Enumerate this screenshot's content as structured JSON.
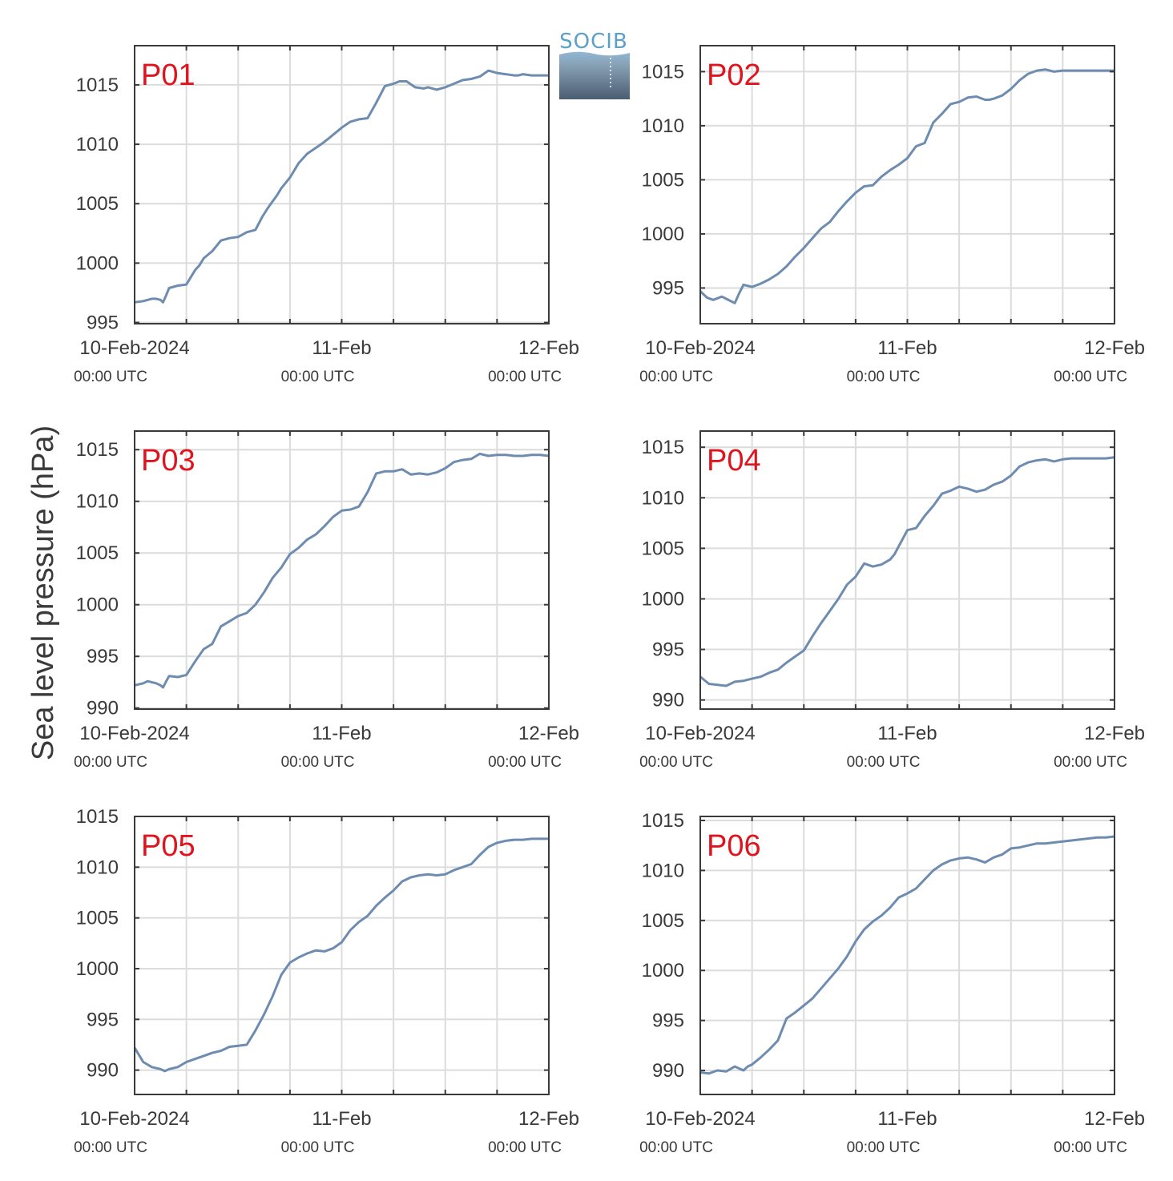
{
  "figure": {
    "ylabel": "Sea level pressure (hPa)",
    "logo_text": "SOCIB",
    "line_color": "#6e8caf",
    "label_color": "#e0141e",
    "grid_color": "#dcdcdc",
    "axis_color": "#3a3a3a",
    "logo_top_color": "#5aa0c8",
    "logo_bottom_color": "#4a5d72"
  },
  "chart_data": [
    {
      "type": "line",
      "label": "P01",
      "xlim": [
        0,
        48
      ],
      "ylim": [
        994.9,
        1018.3
      ],
      "yticks": [
        995,
        1000,
        1005,
        1010,
        1015
      ],
      "xtick_labels": [
        {
          "x": 0,
          "date": "10-Feb-2024",
          "time": "00:00 UTC"
        },
        {
          "x": 24,
          "date": "11-Feb",
          "time": "00:00 UTC"
        },
        {
          "x": 48,
          "date": "12-Feb",
          "time": "00:00 UTC"
        }
      ],
      "series": [
        {
          "x": [
            0,
            1,
            2,
            2.5,
            3,
            3.3,
            3.6,
            4,
            5,
            6,
            6.5,
            7,
            7.5,
            8,
            9,
            10,
            11,
            12,
            13,
            14,
            14.8,
            15.5,
            16.5,
            17,
            18,
            19,
            20,
            21,
            21.8,
            22.5,
            23.5,
            24,
            25,
            26,
            27,
            28,
            29,
            30,
            30.7,
            31.5,
            32.5,
            33.5,
            34,
            35,
            35.5,
            36,
            37,
            38,
            39,
            40,
            41,
            42,
            43,
            44,
            44.5,
            45,
            46,
            47,
            48
          ],
          "y": [
            996.7,
            996.8,
            997,
            997,
            996.9,
            996.7,
            997.2,
            997.9,
            998.1,
            998.2,
            998.8,
            999.4,
            999.8,
            1000.4,
            1001,
            1001.9,
            1002.1,
            1002.2,
            1002.6,
            1002.8,
            1003.9,
            1004.7,
            1005.7,
            1006.3,
            1007.2,
            1008.4,
            1009.2,
            1009.7,
            1010.1,
            1010.5,
            1011.1,
            1011.4,
            1011.9,
            1012.1,
            1012.2,
            1013.5,
            1014.9,
            1015.1,
            1015.3,
            1015.3,
            1014.8,
            1014.7,
            1014.8,
            1014.6,
            1014.7,
            1014.8,
            1015.1,
            1015.4,
            1015.5,
            1015.7,
            1016.2,
            1016,
            1015.9,
            1015.8,
            1015.8,
            1015.9,
            1015.8,
            1015.8,
            1015.8
          ]
        }
      ]
    },
    {
      "type": "line",
      "label": "P02",
      "xlim": [
        0,
        48
      ],
      "ylim": [
        991.7,
        1017.4
      ],
      "yticks": [
        995,
        1000,
        1005,
        1010,
        1015
      ],
      "xtick_labels": [
        {
          "x": 0,
          "date": "10-Feb-2024",
          "time": "00:00 UTC"
        },
        {
          "x": 24,
          "date": "11-Feb",
          "time": "00:00 UTC"
        },
        {
          "x": 48,
          "date": "12-Feb",
          "time": "00:00 UTC"
        }
      ],
      "series": [
        {
          "x": [
            0,
            0.8,
            1.5,
            2.5,
            3,
            3.5,
            4,
            4.5,
            5,
            6,
            7,
            8,
            9,
            10,
            11,
            12,
            13,
            14,
            15,
            16,
            17,
            18,
            19,
            20,
            21,
            22,
            23,
            24,
            25,
            26,
            27,
            28,
            29,
            30,
            31,
            32,
            33,
            33.5,
            34,
            35,
            36,
            37,
            38,
            39,
            40,
            41,
            42,
            43,
            44,
            45,
            46,
            47,
            48
          ],
          "y": [
            994.7,
            994.1,
            993.9,
            994.2,
            994.0,
            993.8,
            993.6,
            994.5,
            995.3,
            995.1,
            995.4,
            995.8,
            996.3,
            997,
            997.9,
            998.7,
            999.6,
            1000.5,
            1001.1,
            1002.1,
            1003,
            1003.8,
            1004.4,
            1004.5,
            1005.3,
            1005.9,
            1006.4,
            1007,
            1008.1,
            1008.4,
            1010.3,
            1011.1,
            1012,
            1012.2,
            1012.6,
            1012.7,
            1012.4,
            1012.4,
            1012.5,
            1012.8,
            1013.4,
            1014.2,
            1014.8,
            1015.1,
            1015.2,
            1015,
            1015.1,
            1015.1,
            1015.1,
            1015.1,
            1015.1,
            1015.1,
            1015.1
          ]
        }
      ]
    },
    {
      "type": "line",
      "label": "P03",
      "xlim": [
        0,
        48
      ],
      "ylim": [
        989.9,
        1016.8
      ],
      "yticks": [
        990,
        995,
        1000,
        1005,
        1010,
        1015
      ],
      "xtick_labels": [
        {
          "x": 0,
          "date": "10-Feb-2024",
          "time": "00:00 UTC"
        },
        {
          "x": 24,
          "date": "11-Feb",
          "time": "00:00 UTC"
        },
        {
          "x": 48,
          "date": "12-Feb",
          "time": "00:00 UTC"
        }
      ],
      "series": [
        {
          "x": [
            0,
            1,
            1.5,
            2.5,
            3,
            3.3,
            3.6,
            4,
            5,
            6,
            7,
            8,
            9,
            10,
            11,
            12,
            13,
            14,
            15,
            16,
            17,
            18,
            19,
            20,
            21,
            22,
            23,
            24,
            25,
            26,
            27,
            28,
            29,
            30,
            31,
            32,
            33,
            34,
            35,
            36,
            37,
            38,
            39,
            40,
            41,
            42,
            43,
            44,
            45,
            46,
            47,
            48
          ],
          "y": [
            992.2,
            992.4,
            992.6,
            992.4,
            992.2,
            992,
            992.5,
            993.1,
            993.0,
            993.2,
            994.5,
            995.7,
            996.2,
            997.9,
            998.4,
            998.9,
            999.2,
            1000,
            1001.2,
            1002.6,
            1003.6,
            1004.9,
            1005.5,
            1006.3,
            1006.8,
            1007.6,
            1008.5,
            1009.1,
            1009.2,
            1009.5,
            1010.9,
            1012.7,
            1012.9,
            1012.9,
            1013.1,
            1012.6,
            1012.7,
            1012.6,
            1012.8,
            1013.2,
            1013.8,
            1014,
            1014.1,
            1014.6,
            1014.4,
            1014.5,
            1014.5,
            1014.4,
            1014.4,
            1014.5,
            1014.5,
            1014.4
          ]
        }
      ]
    },
    {
      "type": "line",
      "label": "P04",
      "xlim": [
        0,
        48
      ],
      "ylim": [
        989.1,
        1016.6
      ],
      "yticks": [
        990,
        995,
        1000,
        1005,
        1010,
        1015
      ],
      "xtick_labels": [
        {
          "x": 0,
          "date": "10-Feb-2024",
          "time": "00:00 UTC"
        },
        {
          "x": 24,
          "date": "11-Feb",
          "time": "00:00 UTC"
        },
        {
          "x": 48,
          "date": "12-Feb",
          "time": "00:00 UTC"
        }
      ],
      "series": [
        {
          "x": [
            0,
            1,
            2,
            3,
            4,
            5,
            6,
            7,
            8,
            9,
            10,
            11,
            12,
            13,
            14,
            15,
            16,
            17,
            18,
            19,
            20,
            21,
            22,
            22.5,
            23,
            24,
            25,
            26,
            27,
            28,
            29,
            30,
            31,
            32,
            33,
            34,
            35,
            36,
            37,
            38,
            39,
            40,
            41,
            42,
            43,
            44,
            45,
            46,
            47,
            48
          ],
          "y": [
            992.3,
            991.6,
            991.5,
            991.4,
            991.8,
            991.9,
            992.1,
            992.3,
            992.7,
            993,
            993.7,
            994.3,
            994.9,
            996.3,
            997.6,
            998.8,
            1000,
            1001.4,
            1002.2,
            1003.5,
            1003.2,
            1003.4,
            1003.9,
            1004.4,
            1005.2,
            1006.8,
            1007,
            1008.2,
            1009.2,
            1010.4,
            1010.7,
            1011.1,
            1010.9,
            1010.6,
            1010.8,
            1011.3,
            1011.6,
            1012.2,
            1013.1,
            1013.5,
            1013.7,
            1013.8,
            1013.6,
            1013.8,
            1013.9,
            1013.9,
            1013.9,
            1013.9,
            1013.9,
            1014
          ]
        }
      ]
    },
    {
      "type": "line",
      "label": "P05",
      "xlim": [
        0,
        48
      ],
      "ylim": [
        987.6,
        1015
      ],
      "yticks": [
        990,
        995,
        1000,
        1005,
        1010,
        1015
      ],
      "xtick_labels": [
        {
          "x": 0,
          "date": "10-Feb-2024",
          "time": "00:00 UTC"
        },
        {
          "x": 24,
          "date": "11-Feb",
          "time": "00:00 UTC"
        },
        {
          "x": 48,
          "date": "12-Feb",
          "time": "00:00 UTC"
        }
      ],
      "series": [
        {
          "x": [
            0,
            1,
            2,
            3,
            3.5,
            4,
            5,
            6,
            7,
            8,
            9,
            10,
            11,
            12,
            13,
            14,
            15,
            16,
            17,
            18,
            19,
            20,
            21,
            22,
            23,
            24,
            25,
            26,
            27,
            28,
            29,
            30,
            31,
            32,
            33,
            34,
            35,
            36,
            37,
            38,
            39,
            40,
            41,
            42,
            43,
            44,
            45,
            46,
            47,
            48
          ],
          "y": [
            992.2,
            990.8,
            990.3,
            990.1,
            989.9,
            990.1,
            990.3,
            990.8,
            991.1,
            991.4,
            991.7,
            991.9,
            992.3,
            992.4,
            992.5,
            993.9,
            995.5,
            997.3,
            999.4,
            1000.6,
            1001.1,
            1001.5,
            1001.8,
            1001.7,
            1002,
            1002.6,
            1003.8,
            1004.6,
            1005.2,
            1006.2,
            1007,
            1007.7,
            1008.6,
            1009,
            1009.2,
            1009.3,
            1009.2,
            1009.3,
            1009.7,
            1010,
            1010.3,
            1011.2,
            1012,
            1012.4,
            1012.6,
            1012.7,
            1012.7,
            1012.8,
            1012.8,
            1012.8
          ]
        }
      ]
    },
    {
      "type": "line",
      "label": "P06",
      "xlim": [
        0,
        48
      ],
      "ylim": [
        987.6,
        1015.4
      ],
      "yticks": [
        990,
        995,
        1000,
        1005,
        1010,
        1015
      ],
      "xtick_labels": [
        {
          "x": 0,
          "date": "10-Feb-2024",
          "time": "00:00 UTC"
        },
        {
          "x": 24,
          "date": "11-Feb",
          "time": "00:00 UTC"
        },
        {
          "x": 48,
          "date": "12-Feb",
          "time": "00:00 UTC"
        }
      ],
      "series": [
        {
          "x": [
            0,
            1,
            2,
            3,
            4,
            5,
            5.5,
            6,
            7,
            8,
            9,
            10,
            11,
            12,
            13,
            14,
            15,
            16,
            17,
            18,
            19,
            20,
            21,
            22,
            23,
            24,
            25,
            26,
            27,
            28,
            29,
            30,
            31,
            32,
            33,
            34,
            35,
            36,
            37,
            38,
            39,
            40,
            41,
            42,
            43,
            44,
            45,
            46,
            47,
            48
          ],
          "y": [
            989.8,
            989.7,
            990,
            989.9,
            990.4,
            990,
            990.4,
            990.6,
            991.3,
            992.1,
            993,
            995.2,
            995.8,
            996.5,
            997.2,
            998.2,
            999.2,
            1000.2,
            1001.4,
            1002.9,
            1004.1,
            1004.9,
            1005.5,
            1006.3,
            1007.3,
            1007.7,
            1008.2,
            1009.1,
            1010,
            1010.6,
            1011,
            1011.2,
            1011.3,
            1011.1,
            1010.8,
            1011.3,
            1011.6,
            1012.2,
            1012.3,
            1012.5,
            1012.7,
            1012.7,
            1012.8,
            1012.9,
            1013,
            1013.1,
            1013.2,
            1013.3,
            1013.3,
            1013.4
          ]
        }
      ]
    }
  ]
}
